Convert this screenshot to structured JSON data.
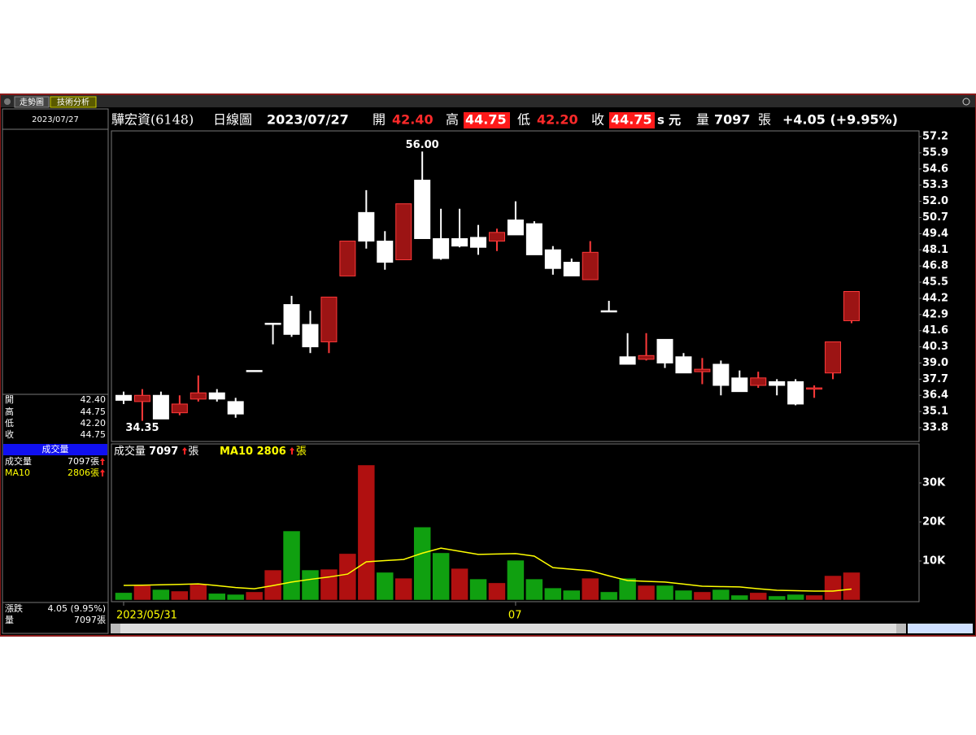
{
  "tabs": [
    "走勢圖",
    "技術分析"
  ],
  "header": {
    "name": "驊宏資(6148)",
    "period": "日線圖",
    "date": "2023/07/27",
    "open_label": "開",
    "open": "42.40",
    "high_label": "高",
    "high": "44.75",
    "low_label": "低",
    "low": "42.20",
    "close_label": "收",
    "close": "44.75",
    "unit": "s 元",
    "volume_label": "量",
    "volume": "7097",
    "volume_unit": "張",
    "change": "+4.05 (+9.95%)"
  },
  "left_panel": {
    "date": "2023/07/27",
    "open_label": "開",
    "open": "42.40",
    "high_label": "高",
    "high": "44.75",
    "low_label": "低",
    "low": "42.20",
    "close_label": "收",
    "close": "44.75",
    "volume_title": "成交量",
    "change_label": "漲跌",
    "change": "4.05 (9.95%)",
    "volume_label": "量"
  },
  "chart_data": {
    "type": "candlestick",
    "categories": [
      "2023/05/31",
      null,
      null,
      null,
      null,
      null,
      null,
      null,
      null,
      null,
      null,
      null,
      null,
      null,
      null,
      null,
      null,
      null,
      null,
      null,
      null,
      "07",
      null,
      null,
      null,
      null,
      null,
      null,
      null,
      null,
      null,
      null,
      null,
      null,
      null,
      null,
      null,
      null,
      null,
      null
    ],
    "open": [
      36.4,
      35.9,
      36.4,
      35.0,
      36.1,
      36.6,
      35.9,
      38.4,
      42.2,
      43.7,
      42.1,
      40.7,
      46.0,
      51.1,
      48.8,
      47.3,
      53.7,
      49.0,
      49.0,
      49.1,
      48.8,
      50.5,
      50.2,
      48.1,
      47.1,
      45.7,
      43.2,
      39.5,
      39.3,
      40.9,
      39.5,
      38.3,
      38.9,
      37.8,
      37.2,
      37.5,
      37.5,
      36.9,
      38.2,
      42.4
    ],
    "high": [
      36.7,
      36.9,
      36.7,
      36.4,
      38.0,
      36.9,
      36.2,
      38.4,
      42.2,
      44.4,
      43.2,
      44.3,
      48.8,
      52.9,
      49.6,
      51.8,
      56.0,
      51.4,
      51.4,
      50.1,
      49.8,
      52.0,
      50.4,
      48.4,
      47.4,
      48.8,
      44.0,
      41.4,
      41.4,
      40.9,
      39.8,
      39.4,
      39.2,
      38.4,
      38.3,
      37.7,
      37.7,
      37.2,
      40.7,
      44.75
    ],
    "low": [
      35.7,
      34.35,
      34.5,
      34.8,
      35.9,
      35.9,
      34.6,
      38.4,
      40.5,
      41.1,
      39.8,
      39.8,
      46.0,
      48.2,
      46.5,
      47.3,
      49.0,
      47.3,
      48.3,
      47.7,
      48.0,
      49.3,
      47.7,
      46.1,
      46.0,
      45.7,
      43.2,
      38.9,
      39.2,
      38.6,
      38.2,
      37.3,
      36.4,
      36.7,
      37.0,
      36.4,
      35.6,
      36.2,
      37.7,
      42.2
    ],
    "close": [
      36.0,
      36.4,
      34.5,
      35.7,
      36.6,
      36.1,
      34.9,
      38.4,
      42.1,
      41.3,
      40.3,
      44.3,
      48.8,
      48.8,
      47.1,
      51.8,
      49.0,
      47.4,
      48.4,
      48.3,
      49.5,
      49.3,
      47.7,
      46.6,
      46.0,
      47.9,
      43.2,
      38.9,
      39.6,
      39.0,
      38.2,
      38.5,
      37.2,
      36.7,
      37.8,
      37.2,
      35.7,
      37.0,
      40.7,
      44.75
    ],
    "up_color": "#9c1414",
    "up_edge": "#ff3a3a",
    "down_color": "#ffffff",
    "ylim": [
      32.69,
      57.66
    ],
    "yticks": [
      {
        "value": 33.8,
        "label": "33.8"
      },
      35.1,
      36.4,
      37.7,
      {
        "value": 39,
        "label": "39.0"
      },
      40.3,
      41.6,
      42.9,
      44.2,
      45.5,
      46.8,
      48.1,
      49.4,
      50.7,
      {
        "value": 52,
        "label": "52.0"
      },
      53.3,
      54.6,
      55.9,
      57.2
    ],
    "annotations": [
      {
        "value": 56,
        "label": "56.00"
      },
      {
        "value": 34.35,
        "label": "34.35"
      }
    ],
    "volume": {
      "name": "成交量",
      "unit": "張",
      "values": [
        1900,
        3750,
        2700,
        2300,
        4000,
        1700,
        1450,
        2100,
        7700,
        17700,
        7700,
        7900,
        11900,
        34600,
        7100,
        5600,
        18700,
        12100,
        8100,
        5400,
        4400,
        10200,
        5400,
        3100,
        2500,
        5600,
        2100,
        5600,
        3750,
        3750,
        2500,
        2100,
        2700,
        1250,
        1900,
        1050,
        1450,
        1250,
        6250,
        7097
      ],
      "colors": [
        "#10a010",
        "#b01010",
        "#10a010",
        "#b01010",
        "#b01010",
        "#10a010",
        "#10a010",
        "#b01010",
        "#b01010",
        "#10a010",
        "#10a010",
        "#b01010",
        "#b01010",
        "#b01010",
        "#10a010",
        "#b01010",
        "#10a010",
        "#10a010",
        "#b01010",
        "#10a010",
        "#b01010",
        "#10a010",
        "#10a010",
        "#10a010",
        "#10a010",
        "#b01010",
        "#10a010",
        "#10a010",
        "#b01010",
        "#10a010",
        "#10a010",
        "#b01010",
        "#10a010",
        "#10a010",
        "#b01010",
        "#10a010",
        "#10a010",
        "#b01010",
        "#b01010",
        "#b01010"
      ],
      "ylim": [
        0,
        40000
      ],
      "yticks": [
        {
          "value": 10000,
          "label": "10K"
        },
        {
          "value": 20000,
          "label": "20K"
        },
        {
          "value": 30000,
          "label": "30K"
        }
      ],
      "ma": {
        "name": "MA10",
        "color": "#ffff00",
        "values": [
          3750,
          3800,
          3900,
          4000,
          4150,
          3700,
          3200,
          2900,
          3700,
          4600,
          5300,
          5900,
          6650,
          9800,
          10100,
          10400,
          12000,
          13300,
          12500,
          11700,
          11800,
          11900,
          11250,
          8300,
          7900,
          7500,
          6200,
          5000,
          4800,
          4600,
          4100,
          3550,
          3450,
          3350,
          2900,
          2500,
          2400,
          2300,
          2300,
          2806
        ]
      }
    }
  }
}
